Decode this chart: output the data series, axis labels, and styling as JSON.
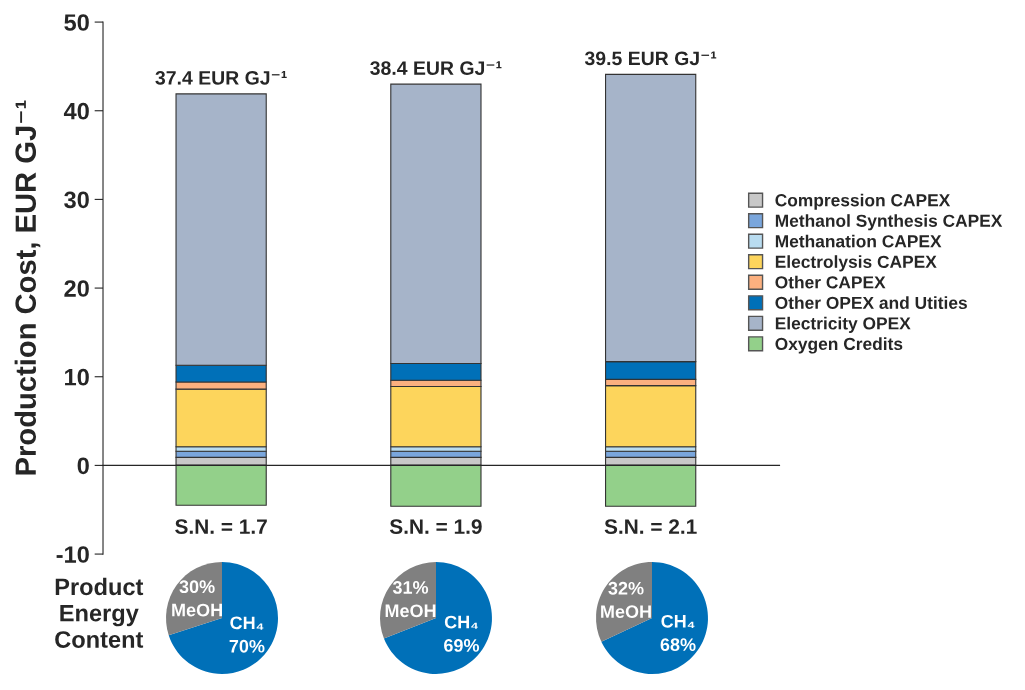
{
  "chart_data": [
    {
      "type": "bar",
      "stacked": true,
      "ylabel": "Production Cost, EUR GJ⁻¹",
      "categories": [
        "S.N. = 1.7",
        "S.N. = 1.9",
        "S.N. = 2.1"
      ],
      "ylim": [
        -10,
        50
      ],
      "yticks": [
        -10,
        0,
        10,
        20,
        30,
        40,
        50
      ],
      "legend": "right",
      "grid": false,
      "series": [
        {
          "name": "Compression CAPEX",
          "color": "#c8c8c8",
          "values": [
            0.9,
            0.9,
            0.9
          ]
        },
        {
          "name": "Methanol Synthesis CAPEX",
          "color": "#7aa6dc",
          "values": [
            0.7,
            0.7,
            0.7
          ]
        },
        {
          "name": "Methanation CAPEX",
          "color": "#b9dcf0",
          "values": [
            0.5,
            0.5,
            0.5
          ]
        },
        {
          "name": "Electrolysis CAPEX",
          "color": "#fdd55c",
          "values": [
            6.5,
            6.8,
            6.9
          ]
        },
        {
          "name": "Other CAPEX",
          "color": "#fbb07f",
          "values": [
            0.8,
            0.7,
            0.7
          ]
        },
        {
          "name": "Other OPEX and Utities",
          "color": "#0070b8",
          "values": [
            1.9,
            1.9,
            2.0
          ]
        },
        {
          "name": "Electricity OPEX",
          "color": "#a6b4c9",
          "values": [
            30.6,
            31.5,
            32.4
          ]
        },
        {
          "name": "Oxygen Credits",
          "color": "#93d08a",
          "values": [
            -4.5,
            -4.6,
            -4.6
          ]
        }
      ],
      "totals": [
        "37.4 EUR GJ⁻¹",
        "38.4 EUR GJ⁻¹",
        "39.5 EUR GJ⁻¹"
      ]
    },
    {
      "type": "pie",
      "ylabel": "Product\nEnergy\nContent",
      "categories": [
        "CH₄",
        "MeOH"
      ],
      "values": [
        70,
        30
      ],
      "colors": [
        "#0070b8",
        "#808080"
      ],
      "value_labels": [
        "70%",
        "30%"
      ]
    },
    {
      "type": "pie",
      "categories": [
        "CH₄",
        "MeOH"
      ],
      "values": [
        69,
        31
      ],
      "colors": [
        "#0070b8",
        "#808080"
      ],
      "value_labels": [
        "69%",
        "31%"
      ]
    },
    {
      "type": "pie",
      "categories": [
        "CH₄",
        "MeOH"
      ],
      "values": [
        68,
        32
      ],
      "colors": [
        "#0070b8",
        "#808080"
      ],
      "value_labels": [
        "68%",
        "32%"
      ]
    }
  ]
}
